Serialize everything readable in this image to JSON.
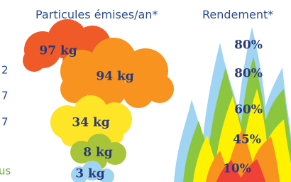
{
  "particles": {
    "title": "Particules émises/an*",
    "items": [
      "97 kg",
      "94 kg",
      "34 kg",
      "8 kg",
      "3 kg"
    ]
  },
  "efficiency": {
    "title": "Rendement*",
    "items": [
      "80%",
      "80%",
      "60%",
      "45%",
      "10%"
    ]
  },
  "left_fragments": [
    "2",
    "7",
    "7",
    "us"
  ]
}
